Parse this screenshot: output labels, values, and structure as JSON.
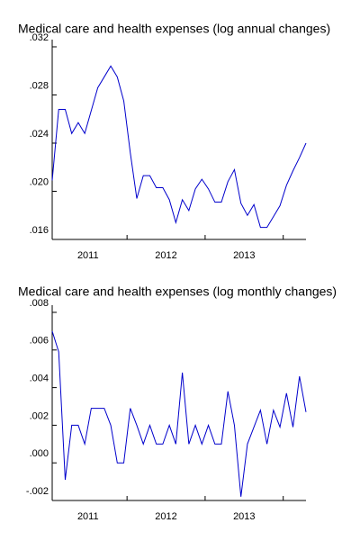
{
  "chart_data": [
    {
      "type": "line",
      "title": "Medical care and health expenses (log annual changes)",
      "categories": [
        null,
        null,
        null,
        null,
        null,
        null,
        "2011",
        null,
        null,
        null,
        null,
        null,
        null,
        null,
        null,
        null,
        null,
        null,
        "2012",
        null,
        null,
        null,
        null,
        null,
        null,
        null,
        null,
        null,
        null,
        null,
        "2013",
        null,
        null,
        null,
        null,
        null,
        null,
        null,
        null,
        null
      ],
      "series": [
        {
          "name": "Medical care and health expenses (log annual changes)",
          "color": "#0000cc",
          "values": [
            0.0209,
            0.0268,
            0.0268,
            0.0248,
            0.0257,
            0.0248,
            0.0267,
            0.0286,
            0.0295,
            0.0304,
            0.0295,
            0.0275,
            0.0232,
            0.0194,
            0.0213,
            0.0213,
            0.0203,
            0.0203,
            0.0193,
            0.0174,
            0.0193,
            0.0184,
            0.0202,
            0.021,
            0.0202,
            0.0191,
            0.0191,
            0.0208,
            0.0218,
            0.019,
            0.018,
            0.0189,
            0.017,
            0.017,
            0.0179,
            0.0188,
            0.0205,
            0.0217,
            0.0228,
            0.024
          ]
        }
      ],
      "ylim": [
        0.016,
        0.032
      ],
      "yticks": [
        {
          "value": 0.016,
          "label": ".016"
        },
        {
          "value": 0.02,
          "label": ".020"
        },
        {
          "value": 0.024,
          "label": ".024"
        },
        {
          "value": 0.028,
          "label": ".028"
        },
        {
          "value": 0.032,
          "label": ".032"
        }
      ]
    },
    {
      "type": "line",
      "title": "Medical care and health expenses (log monthly changes)",
      "categories": [
        null,
        null,
        null,
        null,
        null,
        null,
        "2011",
        null,
        null,
        null,
        null,
        null,
        null,
        null,
        null,
        null,
        null,
        null,
        "2012",
        null,
        null,
        null,
        null,
        null,
        null,
        null,
        null,
        null,
        null,
        null,
        "2013",
        null,
        null,
        null,
        null,
        null,
        null,
        null,
        null,
        null
      ],
      "series": [
        {
          "name": "Medical care and health expenses (log monthly changes)",
          "color": "#0000cc",
          "values": [
            0.007,
            0.0059,
            -0.0009,
            0.002,
            0.002,
            0.001,
            0.0029,
            0.0029,
            0.0029,
            0.002,
            0.0,
            0.0,
            0.0029,
            0.002,
            0.001,
            0.002,
            0.001,
            0.001,
            0.002,
            0.001,
            0.0048,
            0.001,
            0.002,
            0.001,
            0.002,
            0.001,
            0.001,
            0.0038,
            0.002,
            -0.0018,
            0.001,
            0.0019,
            0.0028,
            0.001,
            0.0028,
            0.0019,
            0.0037,
            0.0019,
            0.0046,
            0.0027
          ]
        }
      ],
      "ylim": [
        -0.002,
        0.008
      ],
      "yticks": [
        {
          "value": -0.002,
          "label": "-.002"
        },
        {
          "value": 0.0,
          "label": ".000"
        },
        {
          "value": 0.002,
          "label": ".002"
        },
        {
          "value": 0.004,
          "label": ".004"
        },
        {
          "value": 0.006,
          "label": ".006"
        },
        {
          "value": 0.008,
          "label": ".008"
        }
      ]
    }
  ]
}
